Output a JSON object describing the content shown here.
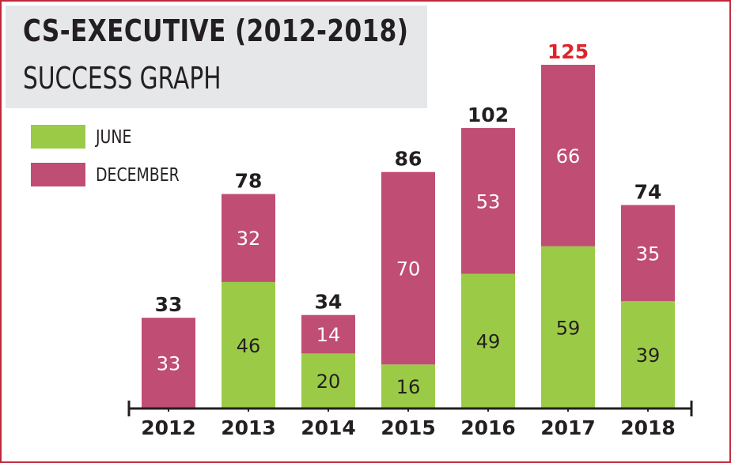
{
  "title": "CS-EXECUTIVE (2012-2018)",
  "subtitle": "SUCCESS GRAPH",
  "colors": {
    "june": "#9bcb46",
    "december": "#c04d74",
    "frame": "#c0283a",
    "title_bg": "#e6e7e8",
    "highlight_total": "#e0232b",
    "text": "#231f20"
  },
  "legend": [
    {
      "label": "JUNE"
    },
    {
      "label": "DECEMBER"
    }
  ],
  "chart_data": {
    "type": "bar",
    "stacked": true,
    "categories": [
      "2012",
      "2013",
      "2014",
      "2015",
      "2016",
      "2017",
      "2018"
    ],
    "series": [
      {
        "name": "JUNE",
        "values": [
          0,
          46,
          20,
          16,
          49,
          59,
          39
        ]
      },
      {
        "name": "DECEMBER",
        "values": [
          33,
          32,
          14,
          70,
          53,
          66,
          35
        ]
      }
    ],
    "totals": [
      "33",
      "78",
      "34",
      "86",
      "102",
      "125",
      "74"
    ],
    "highlight_category": "2017",
    "title": "CS-EXECUTIVE (2012-2018)",
    "subtitle": "SUCCESS GRAPH",
    "ylim": [
      0,
      125
    ],
    "grid": false,
    "legend_position": "top-left"
  }
}
